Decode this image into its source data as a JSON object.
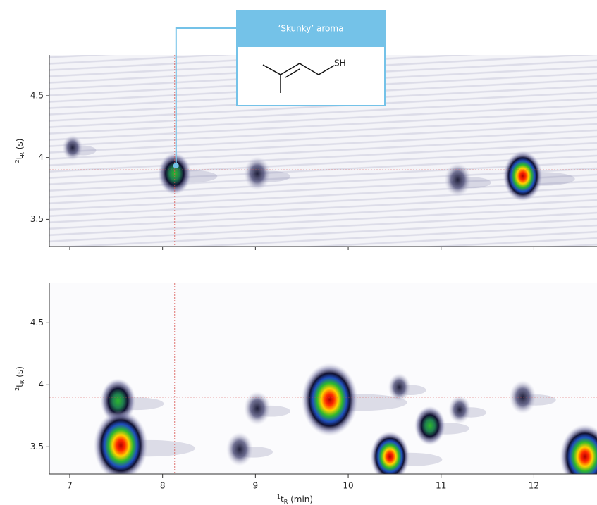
{
  "chart_data": [
    {
      "type": "contour",
      "ylabel": [
        "2",
        "t",
        "R",
        " (s)"
      ],
      "xlim": [
        6.78,
        12.68
      ],
      "ylim": [
        3.28,
        4.83
      ],
      "xticks": [
        7,
        8,
        9,
        10,
        11,
        12
      ],
      "yticks": [
        3.5,
        4.0,
        4.5
      ],
      "show_xtick_labels": false,
      "reference": {
        "x": 8.13,
        "y": 3.9,
        "color": "#d9534f"
      },
      "annotation": {
        "text": "‘Skunky’ aroma",
        "label": "SH",
        "color": "#74c2e8"
      },
      "peaks": {
        "x": [
          7.03,
          8.13,
          9.02,
          11.18,
          11.88
        ],
        "values": [
          4.08,
          3.87,
          3.87,
          3.82,
          3.85
        ],
        "sizes": [
          0.15,
          0.45,
          0.3,
          0.3,
          0.6
        ]
      }
    },
    {
      "type": "contour",
      "ylabel": [
        "2",
        "t",
        "R",
        " (s)"
      ],
      "xlabel": [
        "1",
        "t",
        "R",
        " (min)"
      ],
      "xlim": [
        6.78,
        12.68
      ],
      "ylim": [
        3.28,
        4.82
      ],
      "xticks": [
        7,
        8,
        9,
        10,
        11,
        12
      ],
      "yticks": [
        3.5,
        4.0,
        4.5
      ],
      "show_xtick_labels": true,
      "reference": {
        "x": 8.13,
        "y": 3.9,
        "color": "#d9534f"
      },
      "peaks": {
        "x": [
          7.52,
          7.55,
          8.83,
          9.02,
          9.8,
          10.45,
          10.88,
          10.55,
          11.2,
          11.88,
          12.55
        ],
        "values": [
          3.87,
          3.51,
          3.48,
          3.81,
          3.88,
          3.42,
          3.67,
          3.98,
          3.8,
          3.9,
          3.42
        ],
        "sizes": [
          0.5,
          0.95,
          0.3,
          0.3,
          1.0,
          0.6,
          0.4,
          0.2,
          0.2,
          0.3,
          0.85
        ]
      }
    }
  ]
}
